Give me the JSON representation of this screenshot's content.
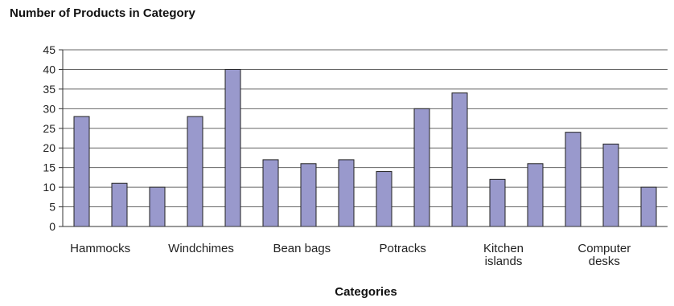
{
  "chart_data": {
    "type": "bar",
    "title": "Number of Products in Category",
    "xlabel": "Categories",
    "ylabel": "",
    "ylim": [
      0,
      45
    ],
    "yticks": [
      0,
      5,
      10,
      15,
      20,
      25,
      30,
      35,
      40,
      45
    ],
    "grid": true,
    "bar_color": "#9999cc",
    "category_labels": [
      {
        "text": "Hammocks",
        "lines": [
          "Hammocks"
        ]
      },
      {
        "text": "Windchimes",
        "lines": [
          "Windchimes"
        ]
      },
      {
        "text": "Bean bags",
        "lines": [
          "Bean bags"
        ]
      },
      {
        "text": "Potracks",
        "lines": [
          "Potracks"
        ]
      },
      {
        "text": "Kitchen islands",
        "lines": [
          "Kitchen",
          "islands"
        ]
      },
      {
        "text": "Computer desks",
        "lines": [
          "Computer",
          "desks"
        ]
      }
    ],
    "values": [
      28,
      11,
      10,
      28,
      40,
      17,
      16,
      17,
      14,
      30,
      34,
      12,
      16,
      24,
      21,
      10
    ]
  }
}
